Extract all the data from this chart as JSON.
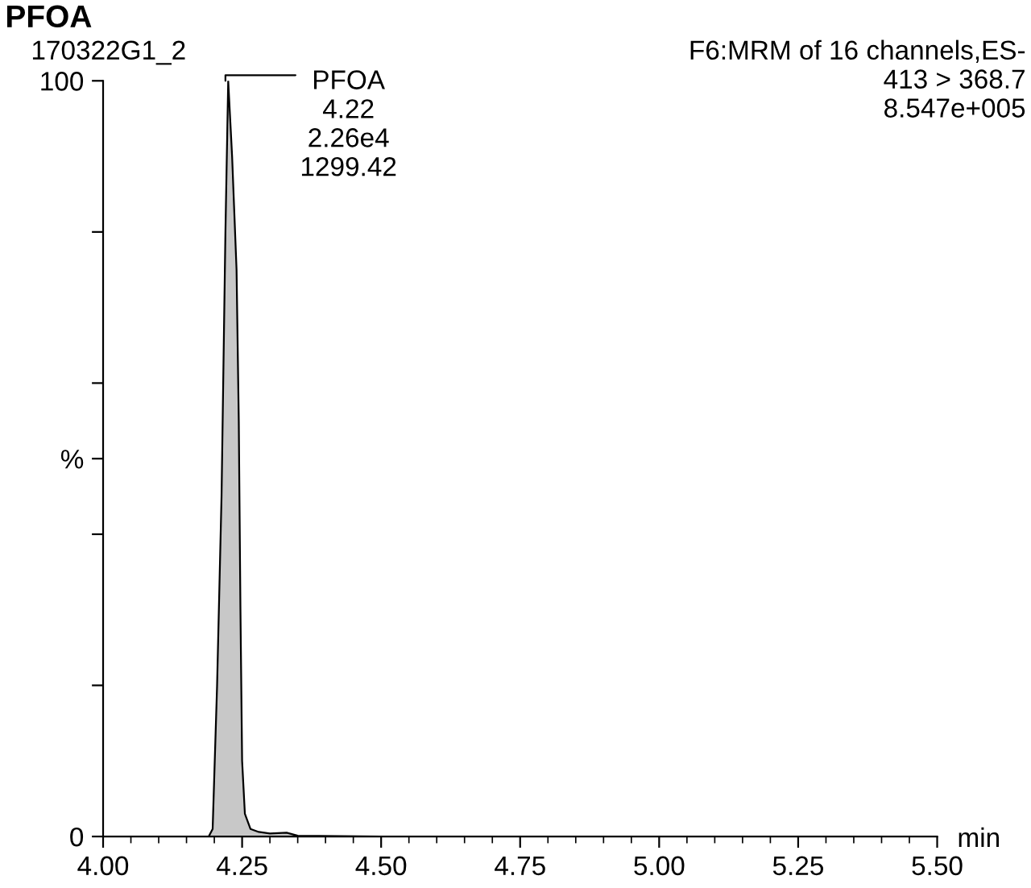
{
  "chart_data": {
    "type": "area",
    "title": "PFOA",
    "subtitle": "170322G1_2",
    "xlabel": "min",
    "annotations": [
      "F6:MRM of 16 channels,ES-\n413 > 368.7\n8.547e+005",
      {
        "text": "PFOA\n4.22\n2.26e4\n1299.42",
        "x": 4.22,
        "y": 100
      }
    ],
    "x": [
      4.19,
      4.197,
      4.205,
      4.213,
      4.22,
      4.225,
      4.232,
      4.24,
      4.244,
      4.247,
      4.25,
      4.255,
      4.265,
      4.28,
      4.3,
      4.33,
      4.35,
      4.5,
      5.5
    ],
    "series": [
      {
        "color": "#c8c8c8",
        "values": [
          0,
          1,
          20,
          45,
          80,
          100,
          90,
          75,
          55,
          30,
          10,
          3,
          1,
          0.6,
          0.4,
          0.5,
          0.1,
          0,
          0
        ]
      }
    ],
    "xlim": [
      4.0,
      5.5
    ],
    "xticks": [
      {
        "value": 4.0,
        "label": "4.00"
      },
      4.25,
      {
        "value": 4.5,
        "label": "4.50"
      },
      4.75,
      {
        "value": 5.0,
        "label": "5.00"
      },
      5.25,
      {
        "value": 5.5,
        "label": "5.50"
      }
    ],
    "ylim": [
      0,
      100
    ],
    "yticks": [
      0,
      {
        "value": 20,
        "label": null
      },
      {
        "value": 40,
        "label": null
      },
      {
        "value": 50,
        "label": "%"
      },
      {
        "value": 60,
        "label": null
      },
      {
        "value": 80,
        "label": null
      },
      100
    ],
    "grid": false,
    "legend": false,
    "marker": "none",
    "line_style": "solid"
  }
}
